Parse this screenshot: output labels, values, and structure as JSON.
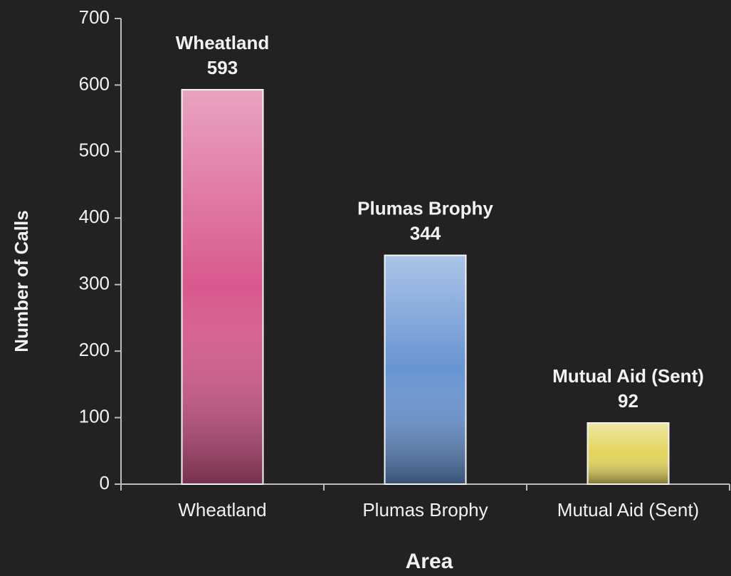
{
  "chart_data": {
    "type": "bar",
    "categories": [
      "Wheatland",
      "Plumas Brophy",
      "Mutual Aid (Sent)"
    ],
    "values": [
      593,
      344,
      92
    ],
    "colors": [
      "#d8588e",
      "#6794d2",
      "#e2d45a"
    ],
    "xlabel": "Area",
    "ylabel": "Number of  Calls",
    "ylim": [
      0,
      700
    ],
    "yticks": [
      0,
      100,
      200,
      300,
      400,
      500,
      600,
      700
    ]
  }
}
